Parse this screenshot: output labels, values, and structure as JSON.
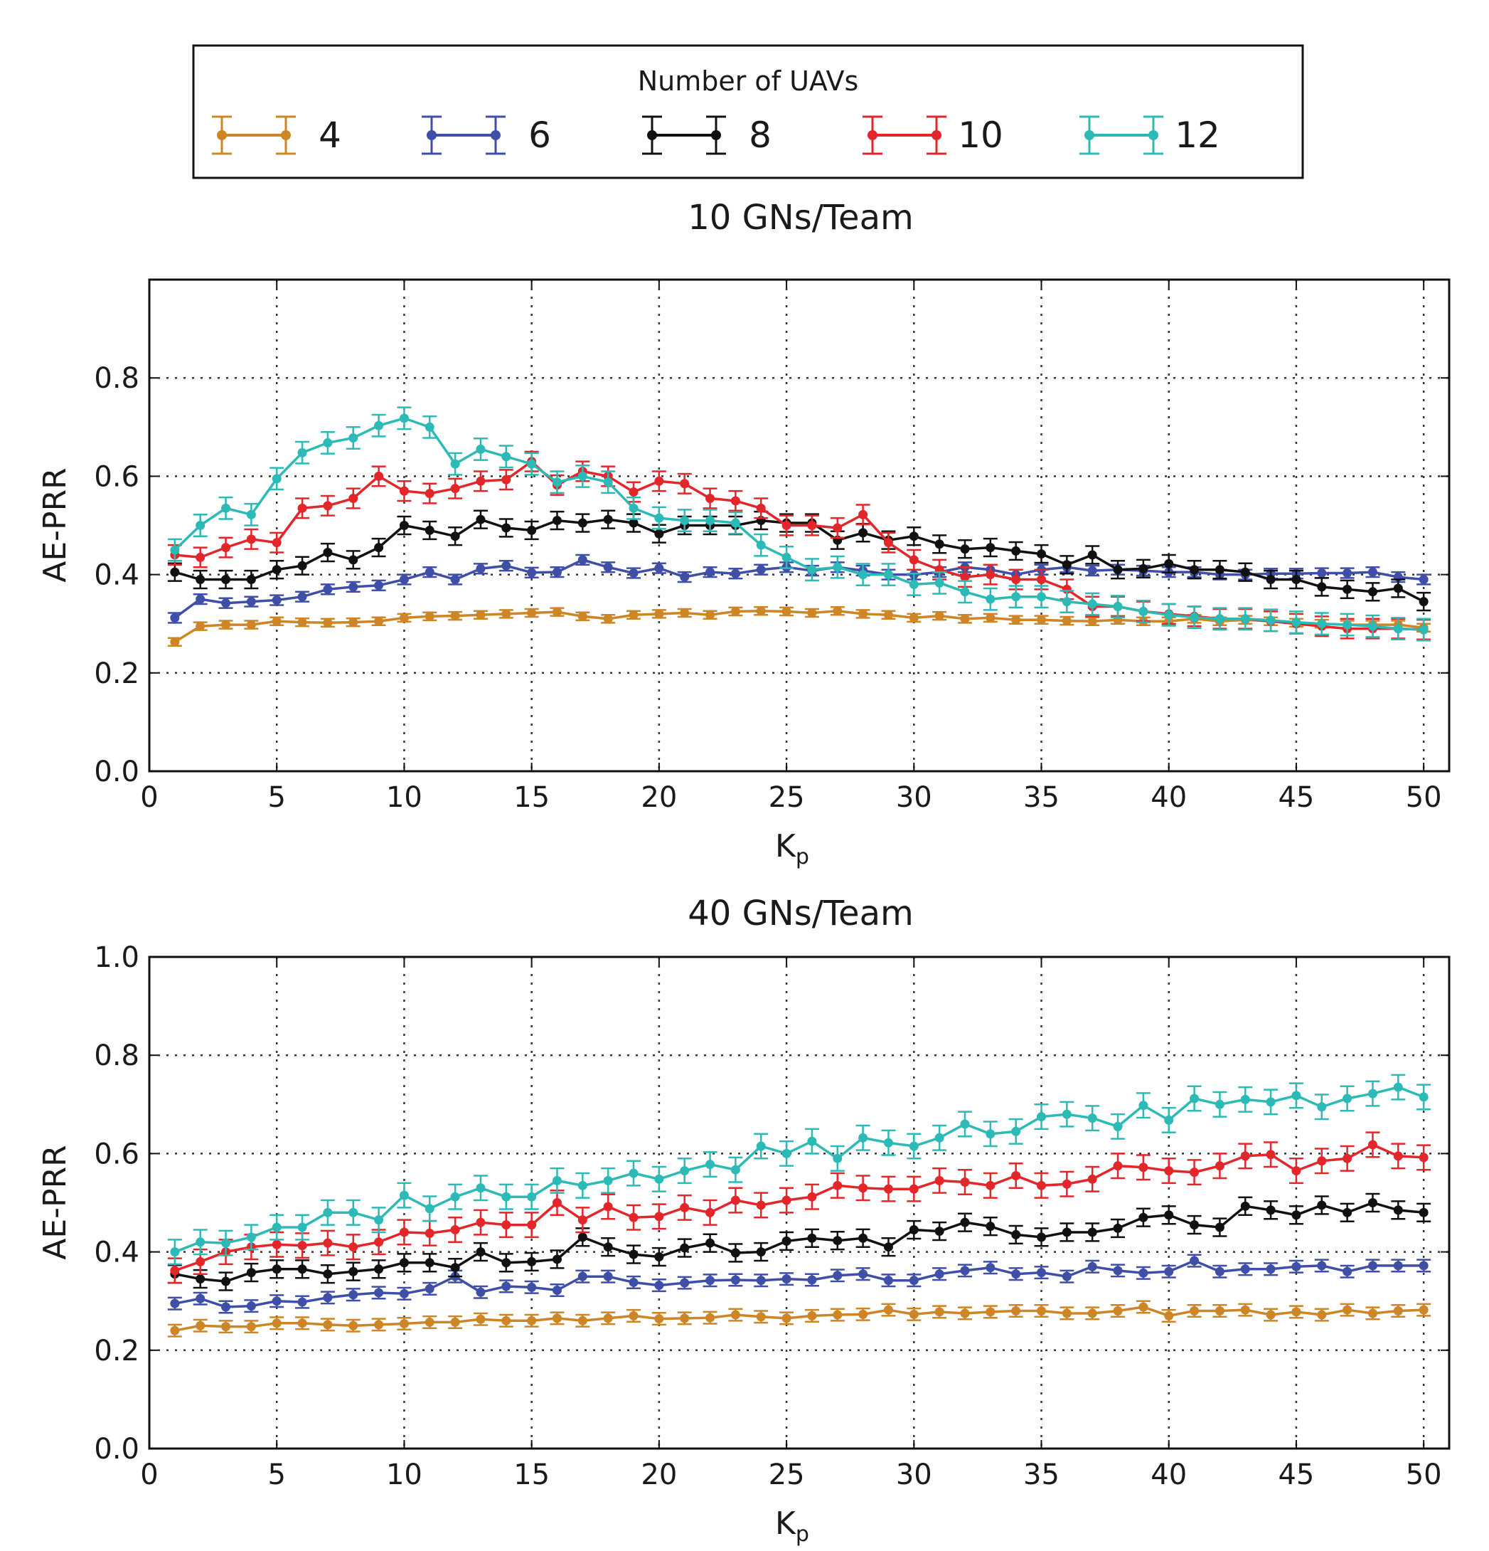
{
  "legend": {
    "title": "Number of UAVs",
    "entries": [
      {
        "label": "4",
        "color": "#cd8526"
      },
      {
        "label": "6",
        "color": "#3f4fa8"
      },
      {
        "label": "8",
        "color": "#111111"
      },
      {
        "label": "10",
        "color": "#e3262a"
      },
      {
        "label": "12",
        "color": "#2cbab6"
      }
    ]
  },
  "chart_data": [
    {
      "type": "line",
      "title": "10 GNs/Team",
      "xlabel": "K",
      "xlabel_subscript": "p",
      "ylabel": "AE-PRR",
      "xlim": [
        0,
        51
      ],
      "ylim": [
        0,
        1.0
      ],
      "xticks": [
        "0",
        "5",
        "10",
        "15",
        "20",
        "25",
        "30",
        "35",
        "40",
        "45",
        "50"
      ],
      "yticks": [
        "0.0",
        "0.2",
        "0.4",
        "0.6",
        "0.8"
      ],
      "grid": true,
      "x": [
        1,
        2,
        3,
        4,
        5,
        6,
        7,
        8,
        9,
        10,
        11,
        12,
        13,
        14,
        15,
        16,
        17,
        18,
        19,
        20,
        21,
        22,
        23,
        24,
        25,
        26,
        27,
        28,
        29,
        30,
        31,
        32,
        33,
        34,
        35,
        36,
        37,
        38,
        39,
        40,
        41,
        42,
        43,
        44,
        45,
        46,
        47,
        48,
        49,
        50
      ],
      "series": [
        {
          "name": "4",
          "error": 0.008,
          "values": [
            0.263,
            0.295,
            0.298,
            0.298,
            0.305,
            0.303,
            0.302,
            0.303,
            0.305,
            0.312,
            0.315,
            0.316,
            0.318,
            0.32,
            0.322,
            0.324,
            0.315,
            0.31,
            0.318,
            0.32,
            0.322,
            0.318,
            0.325,
            0.326,
            0.325,
            0.322,
            0.326,
            0.32,
            0.318,
            0.312,
            0.316,
            0.31,
            0.312,
            0.308,
            0.308,
            0.306,
            0.305,
            0.308,
            0.305,
            0.305,
            0.31,
            0.305,
            0.308,
            0.305,
            0.302,
            0.3,
            0.298,
            0.298,
            0.298,
            0.292
          ]
        },
        {
          "name": "6",
          "error": 0.01,
          "values": [
            0.312,
            0.35,
            0.342,
            0.345,
            0.348,
            0.355,
            0.37,
            0.375,
            0.378,
            0.39,
            0.405,
            0.39,
            0.412,
            0.418,
            0.404,
            0.405,
            0.43,
            0.415,
            0.403,
            0.413,
            0.395,
            0.405,
            0.402,
            0.41,
            0.415,
            0.408,
            0.415,
            0.408,
            0.4,
            0.4,
            0.405,
            0.415,
            0.41,
            0.4,
            0.41,
            0.415,
            0.408,
            0.41,
            0.408,
            0.405,
            0.405,
            0.4,
            0.4,
            0.402,
            0.402,
            0.403,
            0.403,
            0.405,
            0.395,
            0.39
          ]
        },
        {
          "name": "8",
          "error": 0.018,
          "values": [
            0.405,
            0.39,
            0.39,
            0.39,
            0.41,
            0.418,
            0.445,
            0.43,
            0.455,
            0.5,
            0.49,
            0.478,
            0.512,
            0.495,
            0.49,
            0.51,
            0.505,
            0.512,
            0.505,
            0.483,
            0.5,
            0.5,
            0.5,
            0.51,
            0.505,
            0.505,
            0.47,
            0.485,
            0.47,
            0.478,
            0.462,
            0.452,
            0.455,
            0.448,
            0.442,
            0.42,
            0.44,
            0.41,
            0.412,
            0.422,
            0.41,
            0.41,
            0.405,
            0.39,
            0.39,
            0.375,
            0.37,
            0.365,
            0.372,
            0.345
          ]
        },
        {
          "name": "10",
          "error": 0.02,
          "values": [
            0.44,
            0.435,
            0.455,
            0.472,
            0.465,
            0.535,
            0.54,
            0.555,
            0.6,
            0.57,
            0.565,
            0.575,
            0.59,
            0.593,
            0.63,
            0.582,
            0.61,
            0.6,
            0.568,
            0.59,
            0.585,
            0.555,
            0.55,
            0.535,
            0.5,
            0.5,
            0.495,
            0.522,
            0.465,
            0.43,
            0.41,
            0.395,
            0.4,
            0.39,
            0.39,
            0.37,
            0.335,
            0.335,
            0.325,
            0.32,
            0.315,
            0.31,
            0.31,
            0.305,
            0.3,
            0.295,
            0.29,
            0.29,
            0.29,
            0.288
          ]
        },
        {
          "name": "12",
          "error": 0.022,
          "values": [
            0.45,
            0.5,
            0.535,
            0.522,
            0.595,
            0.648,
            0.668,
            0.678,
            0.703,
            0.718,
            0.7,
            0.625,
            0.655,
            0.64,
            0.625,
            0.588,
            0.6,
            0.588,
            0.535,
            0.515,
            0.51,
            0.51,
            0.505,
            0.46,
            0.435,
            0.41,
            0.415,
            0.4,
            0.4,
            0.38,
            0.383,
            0.365,
            0.35,
            0.355,
            0.355,
            0.345,
            0.34,
            0.335,
            0.325,
            0.318,
            0.313,
            0.31,
            0.31,
            0.307,
            0.303,
            0.3,
            0.298,
            0.295,
            0.29,
            0.288
          ]
        }
      ]
    },
    {
      "type": "line",
      "title": "40 GNs/Team",
      "xlabel": "K",
      "xlabel_subscript": "p",
      "ylabel": "AE-PRR",
      "xlim": [
        0,
        51
      ],
      "ylim": [
        0,
        1.0
      ],
      "xticks": [
        "0",
        "5",
        "10",
        "15",
        "20",
        "25",
        "30",
        "35",
        "40",
        "45",
        "50"
      ],
      "yticks": [
        "0.0",
        "0.2",
        "0.4",
        "0.6",
        "0.8",
        "1.0"
      ],
      "grid": true,
      "x": [
        1,
        2,
        3,
        4,
        5,
        6,
        7,
        8,
        9,
        10,
        11,
        12,
        13,
        14,
        15,
        16,
        17,
        18,
        19,
        20,
        21,
        22,
        23,
        24,
        25,
        26,
        27,
        28,
        29,
        30,
        31,
        32,
        33,
        34,
        35,
        36,
        37,
        38,
        39,
        40,
        41,
        42,
        43,
        44,
        45,
        46,
        47,
        48,
        49,
        50
      ],
      "series": [
        {
          "name": "4",
          "error": 0.012,
          "values": [
            0.24,
            0.25,
            0.248,
            0.248,
            0.255,
            0.255,
            0.252,
            0.25,
            0.252,
            0.254,
            0.257,
            0.257,
            0.263,
            0.26,
            0.26,
            0.265,
            0.26,
            0.265,
            0.27,
            0.264,
            0.265,
            0.266,
            0.272,
            0.268,
            0.265,
            0.27,
            0.272,
            0.273,
            0.282,
            0.273,
            0.278,
            0.275,
            0.278,
            0.28,
            0.28,
            0.275,
            0.275,
            0.28,
            0.288,
            0.27,
            0.28,
            0.28,
            0.282,
            0.272,
            0.278,
            0.272,
            0.282,
            0.275,
            0.28,
            0.282
          ]
        },
        {
          "name": "6",
          "error": 0.012,
          "values": [
            0.295,
            0.305,
            0.288,
            0.29,
            0.3,
            0.298,
            0.307,
            0.313,
            0.317,
            0.315,
            0.325,
            0.35,
            0.318,
            0.33,
            0.328,
            0.322,
            0.35,
            0.35,
            0.338,
            0.332,
            0.337,
            0.342,
            0.343,
            0.342,
            0.345,
            0.343,
            0.352,
            0.355,
            0.342,
            0.342,
            0.355,
            0.362,
            0.368,
            0.355,
            0.358,
            0.35,
            0.37,
            0.362,
            0.357,
            0.36,
            0.382,
            0.36,
            0.365,
            0.365,
            0.37,
            0.372,
            0.36,
            0.372,
            0.372,
            0.372
          ]
        },
        {
          "name": "8",
          "error": 0.018,
          "values": [
            0.355,
            0.345,
            0.34,
            0.358,
            0.365,
            0.365,
            0.355,
            0.36,
            0.365,
            0.378,
            0.378,
            0.368,
            0.4,
            0.378,
            0.38,
            0.385,
            0.43,
            0.41,
            0.395,
            0.39,
            0.408,
            0.418,
            0.398,
            0.4,
            0.422,
            0.428,
            0.423,
            0.428,
            0.41,
            0.445,
            0.442,
            0.46,
            0.452,
            0.435,
            0.43,
            0.44,
            0.44,
            0.448,
            0.47,
            0.475,
            0.455,
            0.45,
            0.493,
            0.485,
            0.475,
            0.495,
            0.48,
            0.5,
            0.485,
            0.48
          ]
        },
        {
          "name": "10",
          "error": 0.025,
          "values": [
            0.362,
            0.38,
            0.4,
            0.41,
            0.415,
            0.413,
            0.418,
            0.41,
            0.42,
            0.44,
            0.438,
            0.445,
            0.46,
            0.455,
            0.455,
            0.5,
            0.465,
            0.492,
            0.47,
            0.472,
            0.49,
            0.48,
            0.505,
            0.495,
            0.505,
            0.512,
            0.535,
            0.53,
            0.528,
            0.528,
            0.545,
            0.542,
            0.535,
            0.555,
            0.535,
            0.538,
            0.548,
            0.575,
            0.572,
            0.565,
            0.562,
            0.575,
            0.595,
            0.598,
            0.565,
            0.585,
            0.59,
            0.618,
            0.595,
            0.592
          ]
        },
        {
          "name": "12",
          "error": 0.025,
          "values": [
            0.4,
            0.42,
            0.418,
            0.43,
            0.45,
            0.45,
            0.48,
            0.48,
            0.465,
            0.515,
            0.488,
            0.512,
            0.53,
            0.512,
            0.512,
            0.545,
            0.535,
            0.545,
            0.56,
            0.548,
            0.565,
            0.578,
            0.567,
            0.615,
            0.6,
            0.625,
            0.59,
            0.632,
            0.622,
            0.615,
            0.632,
            0.66,
            0.64,
            0.645,
            0.675,
            0.68,
            0.672,
            0.655,
            0.698,
            0.668,
            0.712,
            0.7,
            0.71,
            0.705,
            0.718,
            0.695,
            0.712,
            0.722,
            0.735,
            0.715
          ]
        }
      ]
    }
  ]
}
